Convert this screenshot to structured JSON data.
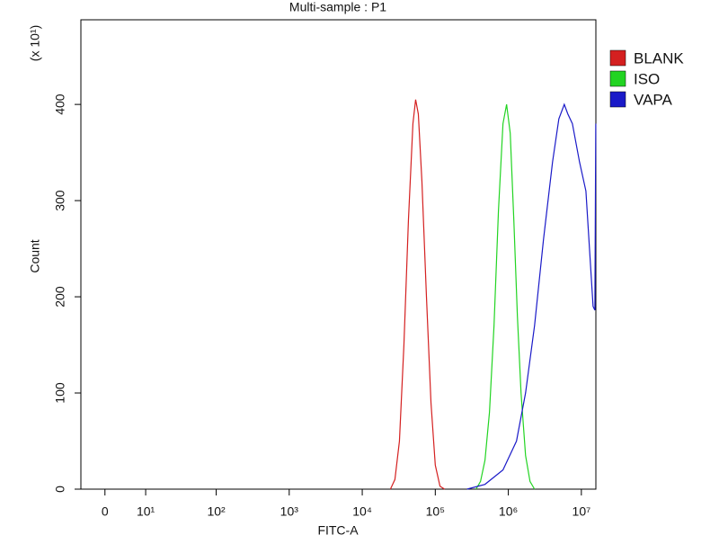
{
  "chart_data": {
    "type": "line",
    "title": "Multi-sample : P1",
    "x_label": "FITC-A",
    "y_label": "Count",
    "y_multiplier": "(x 10¹)",
    "xscale": "biexponential",
    "xlim": [
      -5,
      15800000
    ],
    "xticks": [
      0,
      {
        "value": 10,
        "label": "10¹"
      },
      {
        "value": 100,
        "label": "10²"
      },
      {
        "value": 1000,
        "label": "10³"
      },
      {
        "value": 10000,
        "label": "10⁴"
      },
      {
        "value": 100000,
        "label": "10⁵"
      },
      {
        "value": 1000000,
        "label": "10⁶"
      },
      {
        "value": 10000000,
        "label": "10⁷"
      }
    ],
    "ylim": [
      0,
      488
    ],
    "yticks": [
      0,
      100,
      200,
      300,
      400
    ],
    "legend": "right",
    "series": [
      {
        "name": "BLANK",
        "color": "#d42020",
        "x": [
          24300,
          28000,
          32300,
          37200,
          42900,
          49400,
          53800,
          58600,
          65600,
          75700,
          87300,
          100000,
          116000,
          134000
        ],
        "values": [
          0,
          10,
          50,
          150,
          280,
          380,
          405,
          390,
          320,
          200,
          90,
          25,
          3,
          0
        ]
      },
      {
        "name": "ISO",
        "color": "#22d422",
        "x": [
          361000,
          416000,
          479000,
          552000,
          637000,
          733000,
          845000,
          947000,
          1062000,
          1189000,
          1331000,
          1493000,
          1722000,
          1982000,
          2286000
        ],
        "values": [
          0,
          8,
          30,
          80,
          170,
          290,
          380,
          400,
          370,
          280,
          180,
          100,
          35,
          8,
          0
        ]
      },
      {
        "name": "VAPA",
        "color": "#1a1ac8",
        "x": [
          272000,
          479000,
          845000,
          1294000,
          1722000,
          2286000,
          3035000,
          4029000,
          4920000,
          5835000,
          6534000,
          7536000,
          9444000,
          11540000,
          12920000,
          14470000,
          15310000,
          15750000
        ],
        "values": [
          0,
          5,
          20,
          50,
          100,
          170,
          260,
          340,
          385,
          400,
          390,
          380,
          340,
          310,
          250,
          190,
          186,
          380
        ]
      }
    ]
  }
}
